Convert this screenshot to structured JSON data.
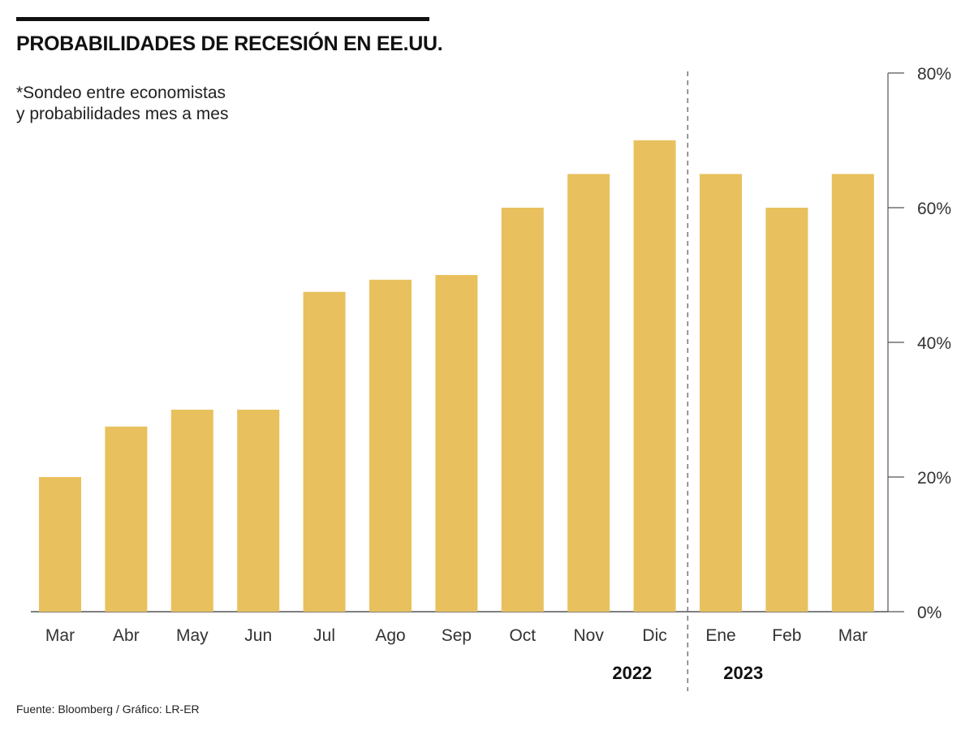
{
  "chart_data": {
    "type": "bar",
    "title": "PROBABILIDADES DE RECESIÓN EN EE.UU.",
    "subtitle_lines": [
      "*Sondeo entre economistas",
      "y probabilidades mes a mes"
    ],
    "categories": [
      "Mar",
      "Abr",
      "May",
      "Jun",
      "Jul",
      "Ago",
      "Sep",
      "Oct",
      "Nov",
      "Dic",
      "Ene",
      "Feb",
      "Mar"
    ],
    "values": [
      20,
      27.5,
      30,
      30,
      47.5,
      49.3,
      50,
      60,
      65,
      70,
      65,
      60,
      65
    ],
    "y_axis": {
      "position": "right",
      "ylim": [
        0,
        80
      ],
      "ticks": [
        0,
        20,
        40,
        60,
        80
      ],
      "tick_labels": [
        "0%",
        "20%",
        "40%",
        "60%",
        "80%"
      ]
    },
    "year_groups": [
      {
        "label": "2022",
        "first_index": 0,
        "last_index": 9
      },
      {
        "label": "2023",
        "first_index": 10,
        "last_index": 12
      }
    ],
    "divider_after_index": 9,
    "bar_color": "#E8C15E",
    "source": "Fuente: Bloomberg / Gráfico: LR-ER"
  }
}
